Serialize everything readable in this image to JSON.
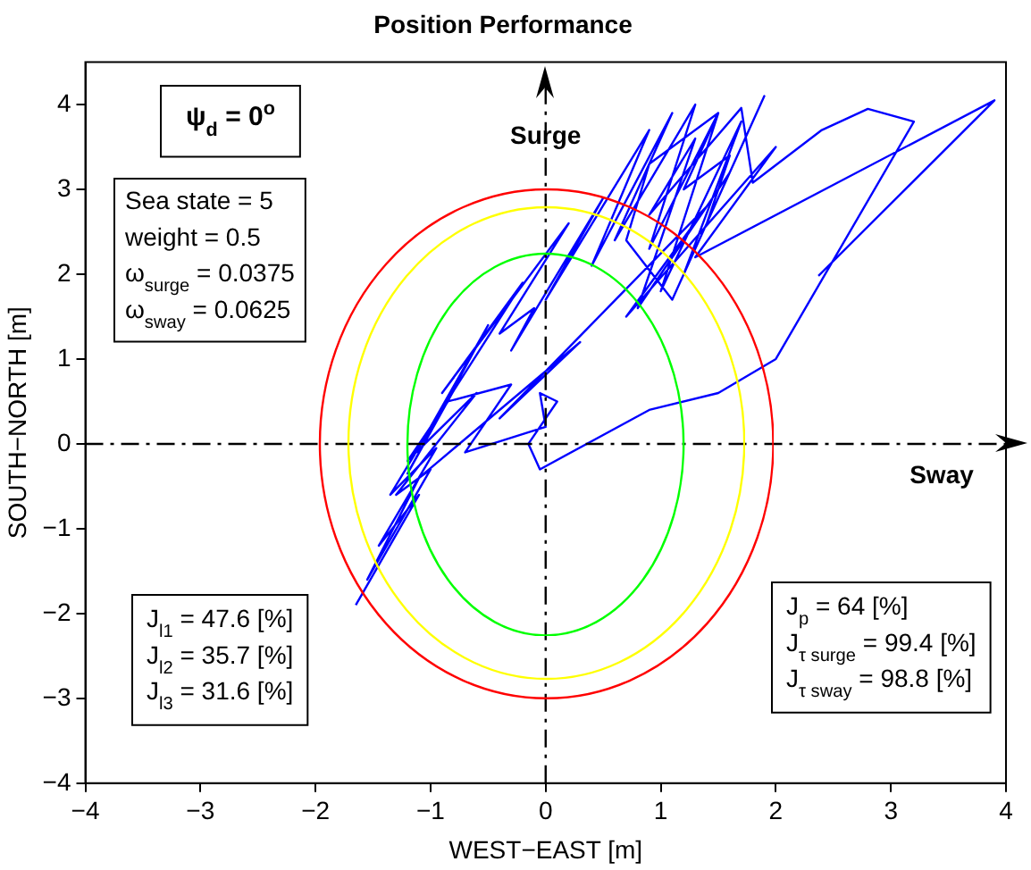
{
  "chart_data": {
    "type": "line",
    "title": "Position Performance",
    "xlabel": "WEST−EAST [m]",
    "ylabel": "SOUTH−NORTH [m]",
    "xlim": [
      -4,
      4
    ],
    "xticks": [
      -4,
      -3,
      -2,
      -1,
      0,
      1,
      2,
      3,
      4
    ],
    "ylim": [
      -4,
      4.5
    ],
    "yticks": [
      -4,
      -3,
      -2,
      -1,
      0,
      1,
      2,
      3,
      4
    ],
    "grid": false,
    "legend": false,
    "marker": "none",
    "line_style": "solid",
    "ref_lines": [
      {
        "axis": "x",
        "value": 0,
        "label": "Surge",
        "color": "#000000",
        "line_style": "dashed"
      },
      {
        "axis": "y",
        "value": 0,
        "label": "Sway",
        "color": "#000000",
        "line_style": "dashed"
      }
    ],
    "annotations": [
      "ψ$_{d}$ = 0$^{o}$",
      "Sea state = 5\nweight = 0.5\nω$_{surge}$ = 0.0375\nω$_{sway}$ = 0.0625",
      "J$_{l1}$ = 47.6 [%]\nJ$_{l2}$ = 35.7 [%]\nJ$_{l3}$ = 31.6 [%]",
      "J$_{p}$ = 64 [%]\nJ$_{τ surge}$ = 99.4 [%]\nJ$_{τ sway}$ = 98.8 [%]"
    ],
    "series": [
      {
        "color": "#0000ff",
        "x": [
          -1.65,
          -1.1,
          -1.45,
          -0.95,
          -1.35,
          -0.75,
          -1.2,
          -0.5,
          -1.0,
          -0.2,
          -0.9,
          0.2,
          -0.4,
          -0.1,
          -0.3,
          0.5,
          0.0,
          0.9,
          0.4,
          1.1,
          0.6,
          1.3,
          0.9,
          1.5,
          1.0,
          1.7,
          1.2,
          1.9,
          1.4,
          1.6,
          1.2,
          1.5,
          0.9,
          0.7,
          1.1,
          1.6,
          0.8,
          1.3,
          0.9,
          1.7,
          1.8,
          2.4,
          2.8,
          3.2,
          2.0,
          1.5,
          0.9,
          -0.05,
          -0.15,
          0.1,
          -0.05,
          0.0,
          -0.7,
          -0.3,
          -0.85,
          -1.2,
          -0.6,
          -1.3,
          -1.0,
          -1.55,
          -1.1,
          0.3,
          -0.4,
          1.4,
          0.7,
          2.0,
          1.3,
          3.9,
          2.37
        ],
        "values": [
          -1.9,
          -0.6,
          -1.2,
          -0.05,
          -0.6,
          0.75,
          -0.35,
          1.4,
          0.2,
          1.9,
          0.6,
          2.6,
          1.3,
          1.6,
          1.1,
          2.9,
          1.7,
          3.7,
          2.1,
          3.9,
          2.4,
          4.0,
          2.3,
          3.9,
          1.8,
          3.8,
          2.0,
          4.1,
          2.6,
          3.4,
          3.0,
          3.9,
          3.3,
          2.4,
          1.7,
          3.2,
          1.6,
          3.6,
          2.7,
          3.96,
          3.08,
          3.7,
          3.95,
          3.8,
          1.0,
          0.6,
          0.4,
          -0.3,
          0.0,
          0.5,
          0.6,
          0.2,
          -0.1,
          0.7,
          0.5,
          -0.2,
          0.6,
          -0.6,
          -0.3,
          -1.6,
          -0.4,
          1.2,
          0.3,
          2.8,
          1.5,
          3.5,
          2.2,
          4.05,
          1.98
        ]
      }
    ]
  }
}
